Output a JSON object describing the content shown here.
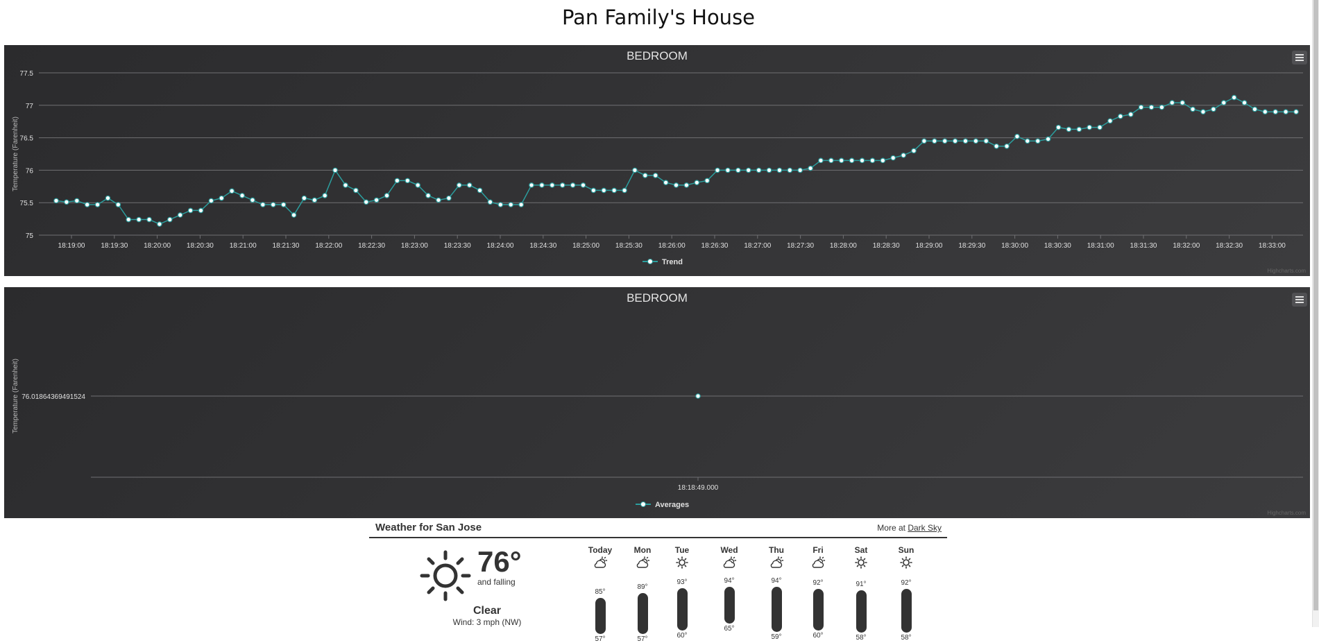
{
  "page": {
    "title": "Pan Family's House"
  },
  "chart_data": [
    {
      "type": "line",
      "title": "BEDROOM",
      "ylabel": "Temperature (Farenheit)",
      "ylim": [
        75,
        77.5
      ],
      "yticks": [
        "75",
        "75.5",
        "76",
        "76.5",
        "77",
        "77.5"
      ],
      "xlabels": [
        "18:19:00",
        "18:19:30",
        "18:20:00",
        "18:20:30",
        "18:21:00",
        "18:21:30",
        "18:22:00",
        "18:22:30",
        "18:23:00",
        "18:23:30",
        "18:24:00",
        "18:24:30",
        "18:25:00",
        "18:25:30",
        "18:26:00",
        "18:26:30",
        "18:27:00",
        "18:27:30",
        "18:28:00",
        "18:28:30",
        "18:29:00",
        "18:29:30",
        "18:30:00",
        "18:30:30",
        "18:31:00",
        "18:31:30",
        "18:32:00",
        "18:32:30",
        "18:33:00"
      ],
      "legend": "Trend",
      "legend_position": "bottom-center",
      "grid": true,
      "color": "#2b9e9e",
      "series": [
        {
          "name": "Trend",
          "values": [
            75.53,
            75.51,
            75.53,
            75.47,
            75.47,
            75.57,
            75.47,
            75.24,
            75.24,
            75.24,
            75.17,
            75.24,
            75.31,
            75.38,
            75.38,
            75.53,
            75.57,
            75.68,
            75.61,
            75.54,
            75.47,
            75.47,
            75.47,
            75.31,
            75.57,
            75.54,
            75.61,
            76.0,
            75.77,
            75.69,
            75.51,
            75.54,
            75.61,
            75.84,
            75.84,
            75.77,
            75.61,
            75.54,
            75.57,
            75.77,
            75.77,
            75.69,
            75.51,
            75.47,
            75.47,
            75.47,
            75.77,
            75.77,
            75.77,
            75.77,
            75.77,
            75.77,
            75.69,
            75.69,
            75.69,
            75.69,
            76.0,
            75.92,
            75.92,
            75.81,
            75.77,
            75.77,
            75.81,
            75.84,
            76.0,
            76.0,
            76.0,
            76.0,
            76.0,
            76.0,
            76.0,
            76.0,
            76.0,
            76.03,
            76.15,
            76.15,
            76.15,
            76.15,
            76.15,
            76.15,
            76.15,
            76.19,
            76.23,
            76.3,
            76.45,
            76.45,
            76.45,
            76.45,
            76.45,
            76.45,
            76.45,
            76.37,
            76.37,
            76.52,
            76.45,
            76.45,
            76.48,
            76.66,
            76.63,
            76.63,
            76.66,
            76.66,
            76.76,
            76.83,
            76.86,
            76.97,
            76.97,
            76.97,
            77.04,
            77.04,
            76.94,
            76.9,
            76.94,
            77.04,
            77.12,
            77.04,
            76.94,
            76.9,
            76.9,
            76.9,
            76.9
          ]
        }
      ]
    },
    {
      "type": "scatter",
      "title": "BEDROOM",
      "ylabel": "Temperature (Farenheit)",
      "yticks": [
        "76.01864369491524"
      ],
      "xlabels": [
        "18:18:49.000"
      ],
      "legend": "Averages",
      "legend_position": "bottom-center",
      "grid": true,
      "color": "#2b9e9e",
      "series": [
        {
          "name": "Averages",
          "x": [
            "18:18:49.000"
          ],
          "values": [
            76.01864369491524
          ]
        }
      ]
    }
  ],
  "credits": "Highcharts.com",
  "weather": {
    "title": "Weather for San Jose",
    "more_prefix": "More at",
    "more_link": "Dark Sky",
    "current": {
      "temp": "76°",
      "trend": "and falling",
      "summary": "Clear",
      "wind": "Wind: 3 mph (NW)",
      "icon": "sun-icon"
    },
    "range": [
      55,
      96
    ],
    "days": [
      {
        "name": "Today",
        "icon": "partly-cloudy-icon",
        "hi_label": "85°",
        "lo_label": "57°",
        "hi": 85,
        "lo": 57
      },
      {
        "name": "Mon",
        "icon": "partly-cloudy-icon",
        "hi_label": "89°",
        "lo_label": "57°",
        "hi": 89,
        "lo": 57
      },
      {
        "name": "Tue",
        "icon": "sun-icon",
        "hi_label": "93°",
        "lo_label": "60°",
        "hi": 93,
        "lo": 60
      },
      {
        "name": "Wed",
        "icon": "partly-cloudy-icon",
        "hi_label": "94°",
        "lo_label": "65°",
        "hi": 94,
        "lo": 65
      },
      {
        "name": "Thu",
        "icon": "partly-cloudy-icon",
        "hi_label": "94°",
        "lo_label": "59°",
        "hi": 94,
        "lo": 59
      },
      {
        "name": "Fri",
        "icon": "partly-cloudy-icon",
        "hi_label": "92°",
        "lo_label": "60°",
        "hi": 92,
        "lo": 60
      },
      {
        "name": "Sat",
        "icon": "sun-icon",
        "hi_label": "91°",
        "lo_label": "58°",
        "hi": 91,
        "lo": 58
      },
      {
        "name": "Sun",
        "icon": "sun-icon",
        "hi_label": "92°",
        "lo_label": "58°",
        "hi": 92,
        "lo": 58
      }
    ]
  }
}
